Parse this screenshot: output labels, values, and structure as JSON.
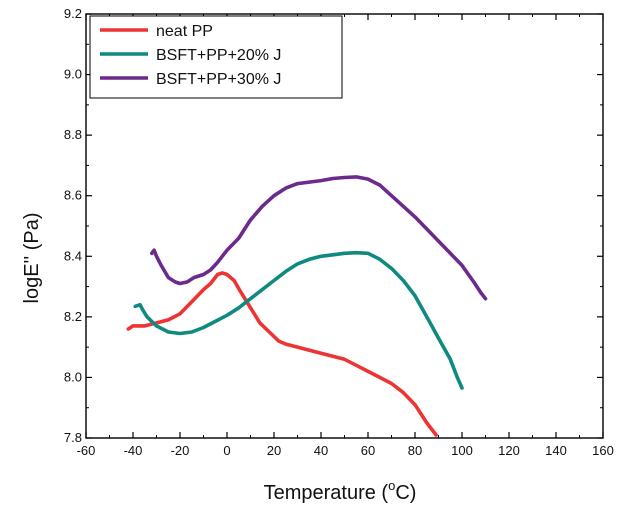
{
  "chart_data": {
    "type": "line",
    "title": "",
    "xlabel": "Temperature (",
    "xlabel_unit_sup": "o",
    "xlabel_unit": "C)",
    "ylabel": "logE'' (Pa)",
    "xlim": [
      -60,
      160
    ],
    "ylim": [
      7.8,
      9.2
    ],
    "xticks": [
      -60,
      -40,
      -20,
      0,
      20,
      40,
      60,
      80,
      100,
      120,
      140,
      160
    ],
    "yticks": [
      "7.8",
      "8.0",
      "8.2",
      "8.4",
      "8.6",
      "8.8",
      "9.0",
      "9.2"
    ],
    "grid": false,
    "legend_position": "top-left",
    "series": [
      {
        "name": "neat PP",
        "color": "#ee3333",
        "points": [
          [
            -42,
            8.16
          ],
          [
            -40,
            8.17
          ],
          [
            -35,
            8.17
          ],
          [
            -30,
            8.18
          ],
          [
            -25,
            8.19
          ],
          [
            -20,
            8.21
          ],
          [
            -15,
            8.25
          ],
          [
            -10,
            8.29
          ],
          [
            -7,
            8.31
          ],
          [
            -4,
            8.34
          ],
          [
            -2,
            8.345
          ],
          [
            0,
            8.34
          ],
          [
            3,
            8.32
          ],
          [
            6,
            8.28
          ],
          [
            10,
            8.23
          ],
          [
            14,
            8.18
          ],
          [
            18,
            8.15
          ],
          [
            22,
            8.12
          ],
          [
            25,
            8.11
          ],
          [
            30,
            8.1
          ],
          [
            40,
            8.08
          ],
          [
            50,
            8.06
          ],
          [
            55,
            8.04
          ],
          [
            60,
            8.02
          ],
          [
            65,
            8.0
          ],
          [
            70,
            7.98
          ],
          [
            75,
            7.95
          ],
          [
            80,
            7.91
          ],
          [
            85,
            7.85
          ],
          [
            89,
            7.81
          ]
        ]
      },
      {
        "name": "BSFT+PP+20% J",
        "color": "#0f8a80",
        "points": [
          [
            -39,
            8.235
          ],
          [
            -37,
            8.24
          ],
          [
            -36,
            8.225
          ],
          [
            -34,
            8.2
          ],
          [
            -30,
            8.17
          ],
          [
            -25,
            8.15
          ],
          [
            -20,
            8.145
          ],
          [
            -15,
            8.15
          ],
          [
            -10,
            8.165
          ],
          [
            -5,
            8.185
          ],
          [
            0,
            8.205
          ],
          [
            5,
            8.23
          ],
          [
            10,
            8.26
          ],
          [
            15,
            8.29
          ],
          [
            20,
            8.32
          ],
          [
            25,
            8.35
          ],
          [
            30,
            8.375
          ],
          [
            35,
            8.39
          ],
          [
            40,
            8.4
          ],
          [
            45,
            8.405
          ],
          [
            50,
            8.41
          ],
          [
            55,
            8.412
          ],
          [
            60,
            8.41
          ],
          [
            65,
            8.39
          ],
          [
            70,
            8.36
          ],
          [
            75,
            8.32
          ],
          [
            80,
            8.27
          ],
          [
            85,
            8.2
          ],
          [
            90,
            8.13
          ],
          [
            95,
            8.06
          ],
          [
            98,
            8.0
          ],
          [
            100,
            7.965
          ]
        ]
      },
      {
        "name": "BSFT+PP+30% J",
        "color": "#6b2a8c",
        "points": [
          [
            -32,
            8.41
          ],
          [
            -31,
            8.42
          ],
          [
            -30,
            8.4
          ],
          [
            -28,
            8.37
          ],
          [
            -25,
            8.33
          ],
          [
            -22,
            8.315
          ],
          [
            -20,
            8.31
          ],
          [
            -17,
            8.315
          ],
          [
            -14,
            8.33
          ],
          [
            -10,
            8.34
          ],
          [
            -7,
            8.355
          ],
          [
            -4,
            8.38
          ],
          [
            0,
            8.42
          ],
          [
            5,
            8.46
          ],
          [
            10,
            8.52
          ],
          [
            15,
            8.565
          ],
          [
            20,
            8.6
          ],
          [
            25,
            8.625
          ],
          [
            30,
            8.64
          ],
          [
            35,
            8.645
          ],
          [
            40,
            8.65
          ],
          [
            45,
            8.657
          ],
          [
            50,
            8.66
          ],
          [
            55,
            8.662
          ],
          [
            60,
            8.655
          ],
          [
            65,
            8.635
          ],
          [
            70,
            8.6
          ],
          [
            75,
            8.565
          ],
          [
            80,
            8.53
          ],
          [
            85,
            8.49
          ],
          [
            90,
            8.45
          ],
          [
            95,
            8.41
          ],
          [
            100,
            8.37
          ],
          [
            105,
            8.315
          ],
          [
            108,
            8.28
          ],
          [
            110,
            8.26
          ]
        ]
      }
    ]
  }
}
